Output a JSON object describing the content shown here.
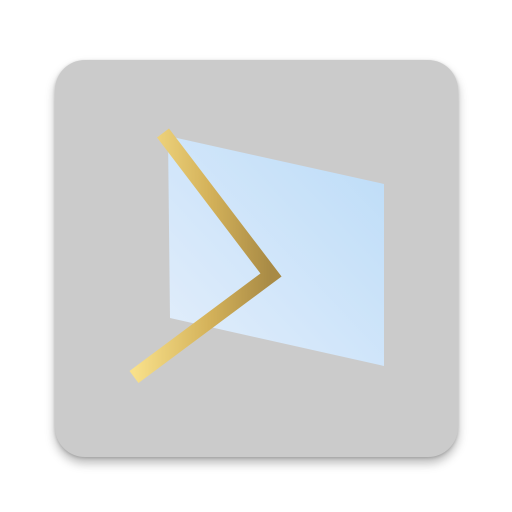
{
  "app_icon": {
    "name": "prompt-window-icon",
    "colors": {
      "tile": "#cbcbcb",
      "panel_light": "#e3eefb",
      "panel_dark": "#bcdcf8",
      "chevron_light": "#f8e08a",
      "chevron_mid": "#d4b25a",
      "chevron_dark": "#a88a45"
    }
  }
}
